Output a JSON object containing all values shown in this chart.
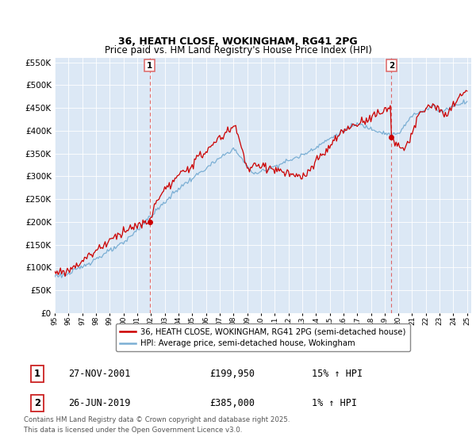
{
  "title_line1": "36, HEATH CLOSE, WOKINGHAM, RG41 2PG",
  "title_line2": "Price paid vs. HM Land Registry's House Price Index (HPI)",
  "ylim": [
    0,
    560000
  ],
  "yticks": [
    0,
    50000,
    100000,
    150000,
    200000,
    250000,
    300000,
    350000,
    400000,
    450000,
    500000,
    550000
  ],
  "red_color": "#cc0000",
  "blue_color": "#7bafd4",
  "vline_color": "#dd6666",
  "background_color": "#dce8f5",
  "sale1_date_num": 2001.9,
  "sale1_price": 199950,
  "sale1_label": "1",
  "sale2_date_num": 2019.49,
  "sale2_price": 385000,
  "sale2_label": "2",
  "legend_red_label": "36, HEATH CLOSE, WOKINGHAM, RG41 2PG (semi-detached house)",
  "legend_blue_label": "HPI: Average price, semi-detached house, Wokingham",
  "annotation1_box": "1",
  "annotation1_date": "27-NOV-2001",
  "annotation1_price": "£199,950",
  "annotation1_hpi": "15% ↑ HPI",
  "annotation2_box": "2",
  "annotation2_date": "26-JUN-2019",
  "annotation2_price": "£385,000",
  "annotation2_hpi": "1% ↑ HPI",
  "footer": "Contains HM Land Registry data © Crown copyright and database right 2025.\nThis data is licensed under the Open Government Licence v3.0."
}
